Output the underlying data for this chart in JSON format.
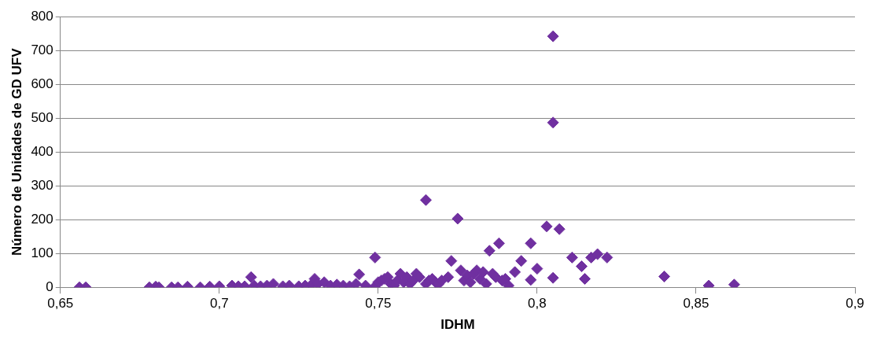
{
  "chart_data": {
    "type": "scatter",
    "xlabel": "IDHM",
    "ylabel": "Número de Unidades de GD UFV",
    "color": "#7030a0",
    "marker": "diamond",
    "grid": "y",
    "legend": false,
    "xlim": [
      0.65,
      0.9
    ],
    "xticks": [
      {
        "value": 0.65,
        "label": "0,65"
      },
      {
        "value": 0.7,
        "label": "0,7"
      },
      {
        "value": 0.75,
        "label": "0,75"
      },
      {
        "value": 0.8,
        "label": "0,8"
      },
      {
        "value": 0.85,
        "label": "0,85"
      },
      {
        "value": 0.9,
        "label": "0,9"
      }
    ],
    "ylim": [
      0,
      800
    ],
    "yticks": [
      0,
      100,
      200,
      300,
      400,
      500,
      600,
      700,
      800
    ],
    "x": [
      0.656,
      0.658,
      0.678,
      0.68,
      0.681,
      0.685,
      0.687,
      0.69,
      0.694,
      0.697,
      0.7,
      0.704,
      0.706,
      0.708,
      0.71,
      0.711,
      0.713,
      0.715,
      0.717,
      0.72,
      0.722,
      0.725,
      0.727,
      0.729,
      0.73,
      0.731,
      0.733,
      0.735,
      0.737,
      0.739,
      0.741,
      0.743,
      0.744,
      0.746,
      0.749,
      0.749,
      0.75,
      0.751,
      0.752,
      0.753,
      0.754,
      0.755,
      0.756,
      0.757,
      0.758,
      0.759,
      0.76,
      0.761,
      0.762,
      0.763,
      0.765,
      0.765,
      0.766,
      0.767,
      0.768,
      0.769,
      0.77,
      0.772,
      0.773,
      0.775,
      0.776,
      0.777,
      0.778,
      0.779,
      0.78,
      0.781,
      0.782,
      0.783,
      0.784,
      0.785,
      0.786,
      0.787,
      0.788,
      0.789,
      0.79,
      0.791,
      0.793,
      0.795,
      0.798,
      0.798,
      0.8,
      0.803,
      0.805,
      0.805,
      0.805,
      0.807,
      0.811,
      0.814,
      0.815,
      0.817,
      0.819,
      0.822,
      0.84,
      0.854,
      0.862
    ],
    "values": [
      0,
      0,
      0,
      2,
      0,
      0,
      0,
      2,
      0,
      2,
      3,
      5,
      3,
      3,
      30,
      5,
      3,
      5,
      10,
      3,
      5,
      3,
      5,
      8,
      25,
      10,
      15,
      5,
      8,
      5,
      3,
      10,
      38,
      5,
      88,
      3,
      15,
      20,
      25,
      30,
      10,
      5,
      20,
      40,
      15,
      30,
      10,
      20,
      40,
      30,
      258,
      10,
      20,
      25,
      15,
      10,
      20,
      30,
      78,
      203,
      50,
      20,
      35,
      15,
      40,
      50,
      25,
      45,
      10,
      108,
      40,
      30,
      130,
      20,
      25,
      5,
      45,
      78,
      130,
      22,
      55,
      180,
      742,
      487,
      28,
      172,
      88,
      62,
      25,
      88,
      98,
      88,
      32,
      5,
      8
    ]
  }
}
